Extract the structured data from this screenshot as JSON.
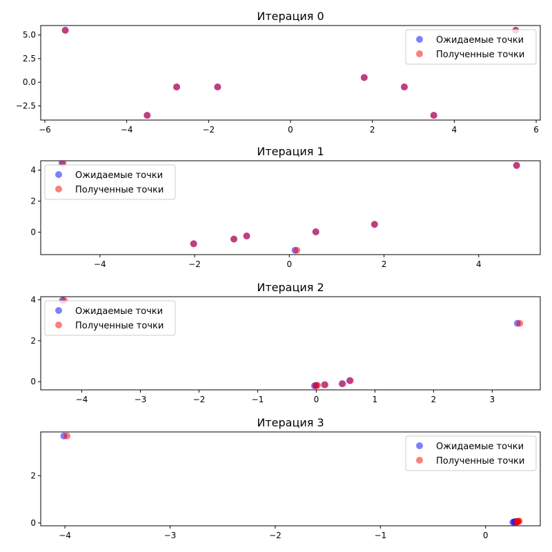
{
  "chart_data": [
    {
      "type": "scatter",
      "title": "Итерация 0",
      "xlim": [
        -6.1,
        6.1
      ],
      "ylim": [
        -4.0,
        6.0
      ],
      "xticks": [
        -6,
        -4,
        -2,
        0,
        2,
        4,
        6
      ],
      "yticks": [
        -2.5,
        0.0,
        2.5,
        5.0
      ],
      "ytick_labels": [
        "−2.5",
        "0.0",
        "2.5",
        "5.0"
      ],
      "legend_position": "top-right",
      "series": [
        {
          "name": "Ожидаемые точки",
          "color": "#0000ff",
          "x": [
            -5.5,
            -3.5,
            -2.78,
            -1.78,
            1.8,
            2.78,
            3.5,
            5.5
          ],
          "y": [
            5.5,
            -3.5,
            -0.5,
            -0.5,
            0.5,
            -0.5,
            -3.5,
            5.5
          ]
        },
        {
          "name": "Полученные точки",
          "color": "#ff0000",
          "x": [
            -5.5,
            -3.5,
            -2.78,
            -1.78,
            1.8,
            2.78,
            3.5,
            5.5
          ],
          "y": [
            5.5,
            -3.5,
            -0.5,
            -0.5,
            0.5,
            -0.5,
            -3.5,
            5.5
          ]
        }
      ]
    },
    {
      "type": "scatter",
      "title": "Итерация 1",
      "xlim": [
        -5.25,
        5.3
      ],
      "ylim": [
        -1.45,
        4.6
      ],
      "xticks": [
        -4,
        -2,
        0,
        2,
        4
      ],
      "yticks": [
        0,
        2,
        4
      ],
      "legend_position": "top-left",
      "series": [
        {
          "name": "Ожидаемые точки",
          "color": "#0000ff",
          "x": [
            -4.8,
            -2.02,
            -1.17,
            -0.9,
            0.12,
            0.56,
            1.8,
            4.8
          ],
          "y": [
            4.45,
            -0.75,
            -0.45,
            -0.25,
            -1.17,
            0.02,
            0.5,
            4.3
          ]
        },
        {
          "name": "Полученные точки",
          "color": "#ff0000",
          "x": [
            -4.78,
            -2.02,
            -1.17,
            -0.9,
            0.16,
            0.56,
            1.8,
            4.8
          ],
          "y": [
            4.45,
            -0.75,
            -0.45,
            -0.25,
            -1.17,
            0.02,
            0.5,
            4.3
          ]
        }
      ]
    },
    {
      "type": "scatter",
      "title": "Итерация 2",
      "xlim": [
        -4.7,
        3.82
      ],
      "ylim": [
        -0.4,
        4.15
      ],
      "xticks": [
        -4,
        -3,
        -2,
        -1,
        0,
        1,
        2,
        3
      ],
      "yticks": [
        0,
        2,
        4
      ],
      "legend_position": "top-left",
      "series": [
        {
          "name": "Ожидаемые точки",
          "color": "#0000ff",
          "x": [
            -4.33,
            -0.03,
            0.0,
            0.14,
            0.44,
            0.57,
            3.43
          ],
          "y": [
            3.97,
            -0.2,
            -0.18,
            -0.15,
            -0.1,
            0.05,
            2.85
          ]
        },
        {
          "name": "Полученные точки",
          "color": "#ff0000",
          "x": [
            -4.3,
            -0.01,
            0.02,
            0.15,
            0.45,
            0.58,
            3.47
          ],
          "y": [
            3.97,
            -0.2,
            -0.18,
            -0.15,
            -0.1,
            0.05,
            2.85
          ]
        }
      ]
    },
    {
      "type": "scatter",
      "title": "Итерация 3",
      "xlim": [
        -4.23,
        0.52
      ],
      "ylim": [
        -0.12,
        3.85
      ],
      "xticks": [
        -4,
        -3,
        -2,
        -1,
        0
      ],
      "yticks": [
        0,
        2
      ],
      "legend_position": "top-right",
      "series": [
        {
          "name": "Ожидаемые точки",
          "color": "#0000ff",
          "x": [
            -4.01,
            0.26,
            0.27,
            0.28,
            0.29,
            0.3
          ],
          "y": [
            3.68,
            0.03,
            0.04,
            0.05,
            0.06,
            0.04
          ]
        },
        {
          "name": "Полученные точки",
          "color": "#ff0000",
          "x": [
            -3.98,
            0.29,
            0.3,
            0.31,
            0.32,
            0.31
          ],
          "y": [
            3.68,
            0.04,
            0.05,
            0.07,
            0.08,
            0.06
          ]
        }
      ]
    }
  ]
}
